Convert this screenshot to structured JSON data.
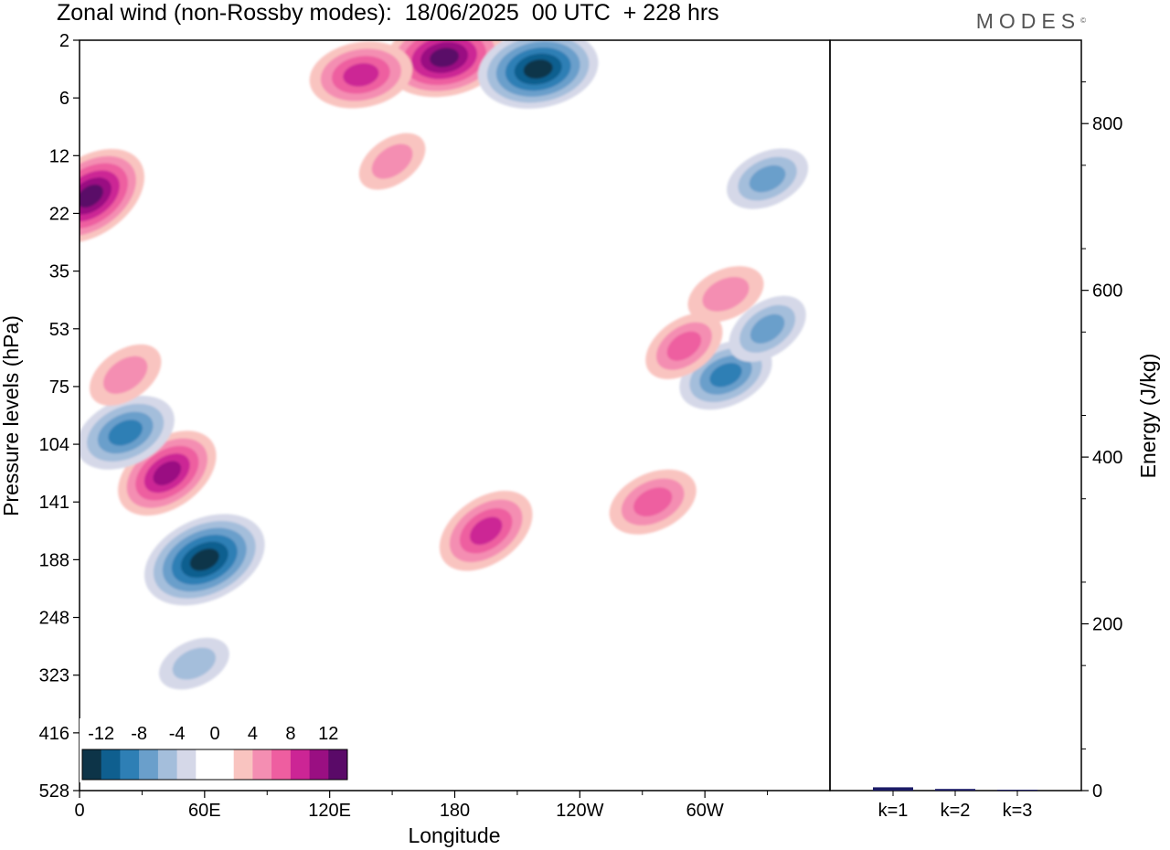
{
  "header": {
    "title": "Zonal wind (non-Rossby modes):  18/06/2025  00 UTC  + 228 hrs",
    "brand": "MODES",
    "brand_mark": "©"
  },
  "chart_data": [
    {
      "type": "heatmap",
      "title": "Zonal wind (non-Rossby modes):  18/06/2025  00 UTC  + 228 hrs",
      "xlabel": "Longitude",
      "ylabel": "Pressure levels (hPa)",
      "x_ticks": [
        "0",
        "60E",
        "120E",
        "180",
        "120W",
        "60W"
      ],
      "x_tick_values": [
        0,
        60,
        120,
        180,
        240,
        300
      ],
      "x_range": [
        0,
        360
      ],
      "y_ticks": [
        "2",
        "6",
        "12",
        "22",
        "35",
        "53",
        "75",
        "104",
        "141",
        "188",
        "248",
        "323",
        "416",
        "528"
      ],
      "y_tick_values": [
        2,
        6,
        12,
        22,
        35,
        53,
        75,
        104,
        141,
        188,
        248,
        323,
        416,
        528
      ],
      "y_scale": "level-index (inverted, 2 at top, 528 at bottom)",
      "colorbar": {
        "labels": [
          "-12",
          "-8",
          "-4",
          "0",
          "4",
          "8",
          "12"
        ],
        "levels": [
          -14,
          -12,
          -10,
          -8,
          -6,
          -4,
          -2,
          0,
          2,
          4,
          6,
          8,
          10,
          12,
          14
        ],
        "colors": [
          "#0d3448",
          "#0f5f8f",
          "#2e7fb5",
          "#6a9fcb",
          "#a4bedb",
          "#d5d8e8",
          "#ffffff",
          "#ffffff",
          "#f9c4c0",
          "#f48eb2",
          "#ee5ea0",
          "#cc2595",
          "#9a0f82",
          "#5a0a68"
        ],
        "placement": "bottom-left"
      },
      "features": [
        {
          "lon": 5,
          "level": 2.7,
          "value": 12
        },
        {
          "lon": 60,
          "level": 9.0,
          "value": -13
        },
        {
          "lon": 42,
          "level": 7.5,
          "value": 10
        },
        {
          "lon": 22,
          "level": 6.8,
          "value": -9
        },
        {
          "lon": 195,
          "level": 8.5,
          "value": 9
        },
        {
          "lon": 275,
          "level": 8.0,
          "value": 7
        },
        {
          "lon": 175,
          "level": 0.3,
          "value": 12
        },
        {
          "lon": 220,
          "level": 0.5,
          "value": -12
        },
        {
          "lon": 135,
          "level": 0.6,
          "value": 9
        },
        {
          "lon": 310,
          "level": 5.8,
          "value": -8
        },
        {
          "lon": 330,
          "level": 5.0,
          "value": -6
        },
        {
          "lon": 330,
          "level": 2.4,
          "value": -6
        },
        {
          "lon": 290,
          "level": 5.3,
          "value": 6
        },
        {
          "lon": 310,
          "level": 4.4,
          "value": 5
        },
        {
          "lon": 22,
          "level": 5.8,
          "value": 5
        },
        {
          "lon": 55,
          "level": 10.8,
          "value": -4
        },
        {
          "lon": 150,
          "level": 2.1,
          "value": 4
        }
      ]
    },
    {
      "type": "bar",
      "ylabel": "Energy (J/kg)",
      "categories": [
        "k=1",
        "k=2",
        "k=3"
      ],
      "values": [
        4,
        2,
        1
      ],
      "ylim": [
        0,
        900
      ],
      "y_ticks": [
        "0",
        "200",
        "400",
        "600",
        "800"
      ],
      "y_tick_values": [
        0,
        200,
        400,
        600,
        800
      ],
      "bar_color": "#1a1a66"
    }
  ]
}
